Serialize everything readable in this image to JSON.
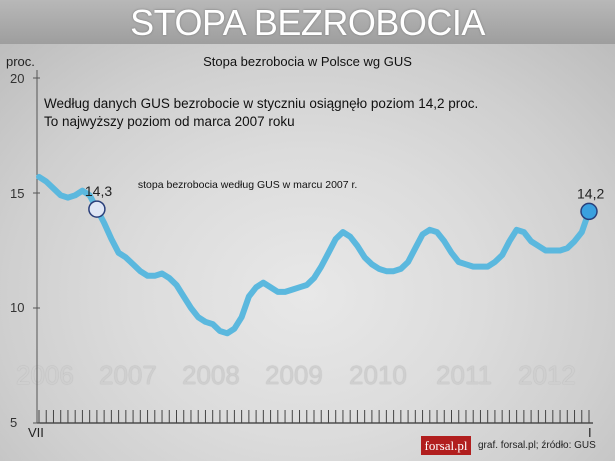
{
  "banner": {
    "title": "STOPA BEZROBOCIA"
  },
  "chart_data": {
    "type": "line",
    "title": "Stopa bezrobocia w Polsce wg GUS",
    "ylabel": "proc.",
    "ylim": [
      5,
      20
    ],
    "yticks": [
      "20",
      "15",
      "10",
      "5"
    ],
    "x_start_label": "VII",
    "x_end_label": "I",
    "year_labels": [
      "2006",
      "2007",
      "2008",
      "2009",
      "2010",
      "2011",
      "2012"
    ],
    "annotation_lines": [
      "Według danych GUS bezrobocie w styczniu osiągnęło poziom 14,2 proc.",
      "To najwyższy poziom od marca 2007 roku"
    ],
    "point_labels": {
      "march_2007": "14,3",
      "march_2007_note": "stopa bezrobocia według GUS w marcu 2007 r.",
      "jan_2013": "14,2"
    },
    "series": [
      {
        "values": [
          15.7,
          15.5,
          15.2,
          14.9,
          14.8,
          14.9,
          15.1,
          14.9,
          14.3,
          13.7,
          13.0,
          12.4,
          12.2,
          11.9,
          11.6,
          11.4,
          11.4,
          11.5,
          11.3,
          11.0,
          10.5,
          10.0,
          9.6,
          9.4,
          9.3,
          9.0,
          8.9,
          9.1,
          9.6,
          10.5,
          10.9,
          11.1,
          10.9,
          10.7,
          10.7,
          10.8,
          10.9,
          11.0,
          11.3,
          11.8,
          12.4,
          13.0,
          13.3,
          13.1,
          12.7,
          12.2,
          11.9,
          11.7,
          11.6,
          11.6,
          11.7,
          12.0,
          12.6,
          13.2,
          13.4,
          13.3,
          12.9,
          12.4,
          12.0,
          11.9,
          11.8,
          11.8,
          11.8,
          12.0,
          12.3,
          12.9,
          13.4,
          13.3,
          12.9,
          12.7,
          12.5,
          12.5,
          12.5,
          12.6,
          12.9,
          13.3,
          14.2
        ]
      }
    ],
    "highlight_points": [
      {
        "index": 8,
        "label_key": "march_2007"
      },
      {
        "index": 76,
        "label_key": "jan_2013"
      }
    ]
  },
  "footer": {
    "logo": "forsal.pl",
    "credit": "graf. forsal.pl; źródło: GUS"
  },
  "colors": {
    "line": "#5bb8de",
    "marker_dark": "#2a3f7a",
    "marker_fill_light": "#dfe6f5",
    "marker_fill_blue": "#3aa0df",
    "logo_bg": "#b11e1e"
  }
}
